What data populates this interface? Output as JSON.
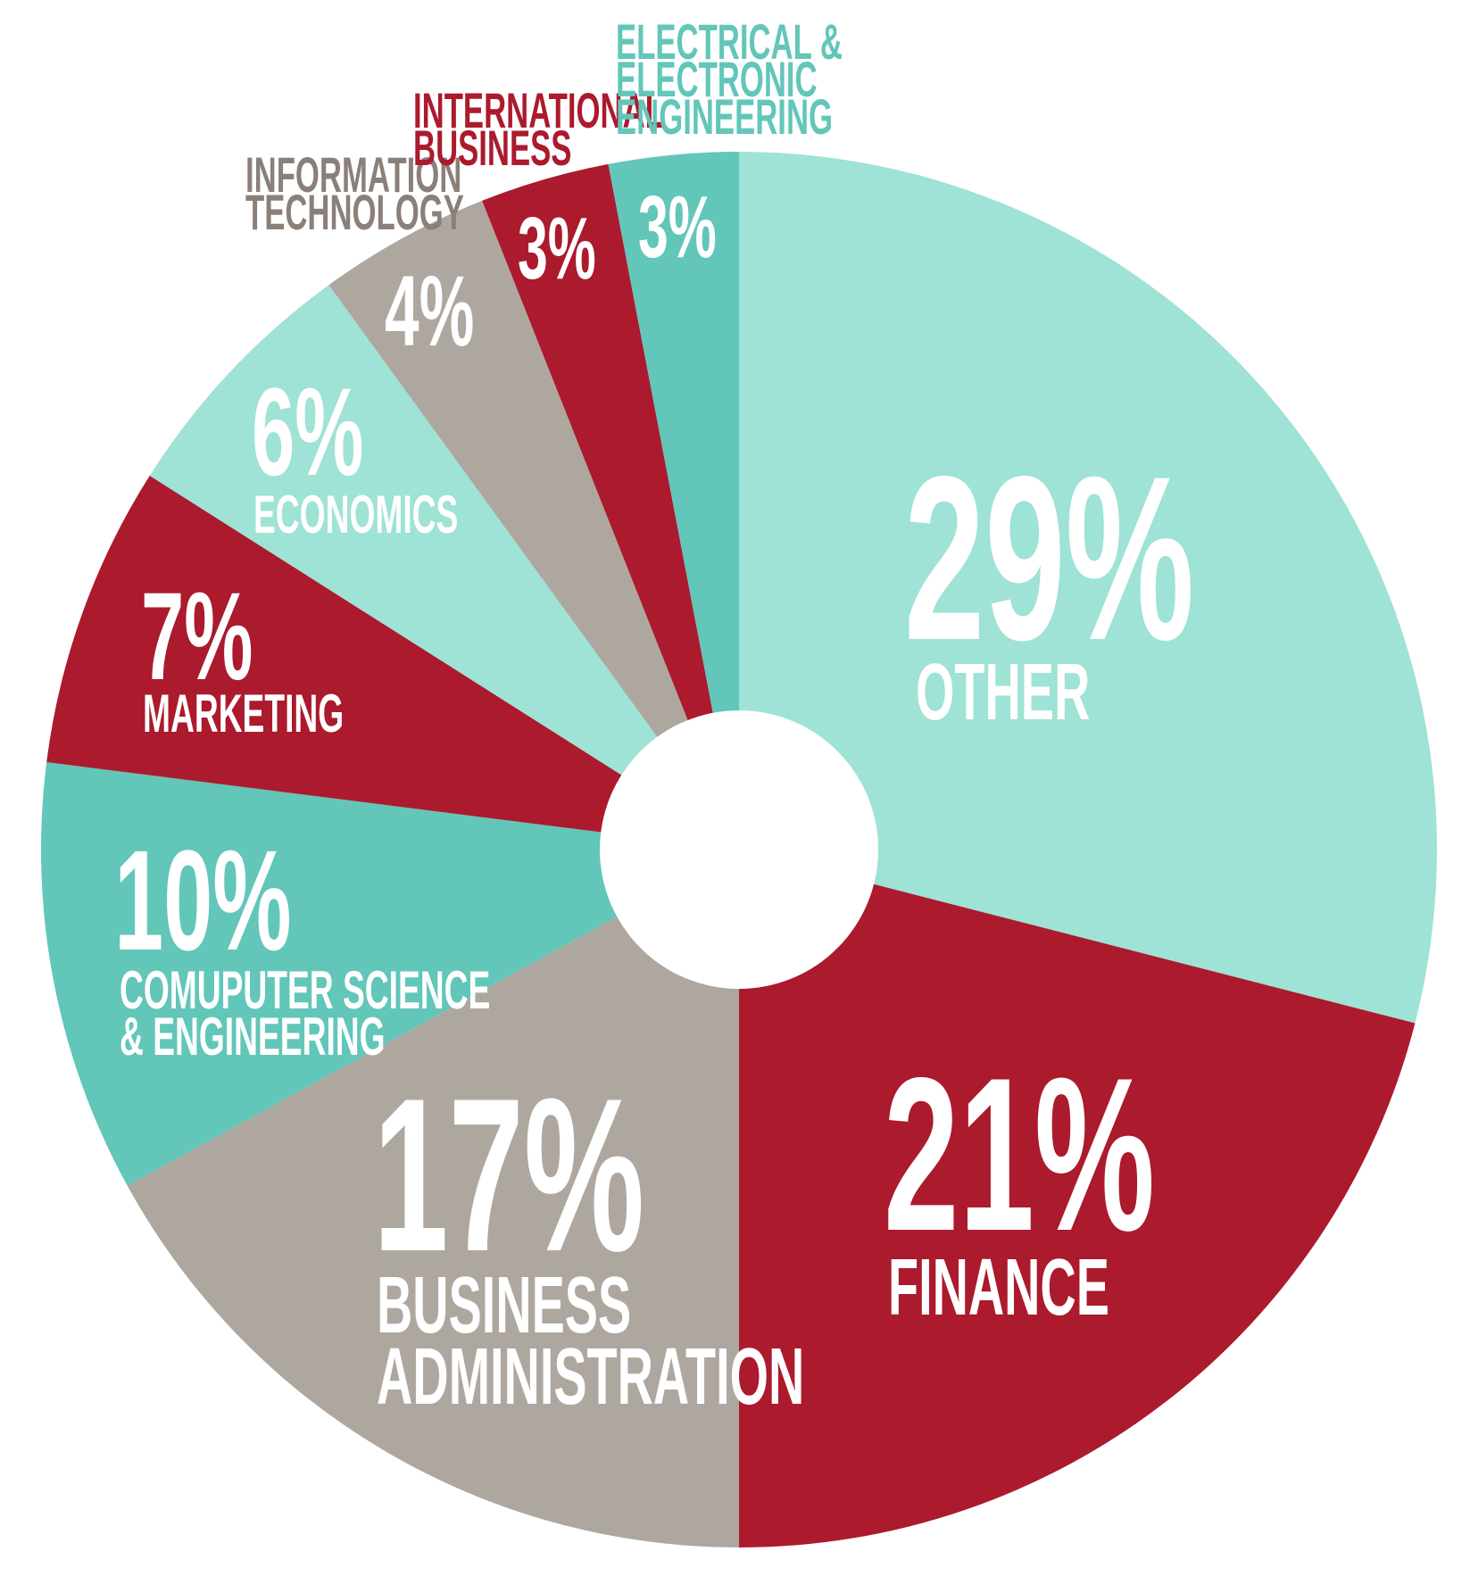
{
  "chart_data": {
    "type": "pie",
    "donut": true,
    "title": "",
    "start": "top, clockwise",
    "slices": [
      {
        "label": "OTHER",
        "value": 29,
        "display": "29%",
        "color": "#9fe2d6"
      },
      {
        "label": "FINANCE",
        "value": 21,
        "display": "21%",
        "color": "#ab1a2d"
      },
      {
        "label": "BUSINESS ADMINISTRATION",
        "label_lines": [
          "BUSINESS",
          "ADMINISTRATION"
        ],
        "value": 17,
        "display": "17%",
        "color": "#aea7a0"
      },
      {
        "label": "COMUPUTER SCIENCE & ENGINEERING",
        "label_lines": [
          "COMUPUTER SCIENCE",
          "& ENGINEERING"
        ],
        "value": 10,
        "display": "10%",
        "color": "#62c6b9"
      },
      {
        "label": "MARKETING",
        "value": 7,
        "display": "7%",
        "color": "#ab1a2d"
      },
      {
        "label": "ECONOMICS",
        "value": 6,
        "display": "6%",
        "color": "#9fe2d6"
      },
      {
        "label": "INFORMATION TECHNOLOGY",
        "label_lines": [
          "INFORMATION",
          "TECHNOLOGY"
        ],
        "value": 4,
        "display": "4%",
        "color": "#aea7a0",
        "label_color": "#8b8079"
      },
      {
        "label": "INTERNATIONAL BUSINESS",
        "label_lines": [
          "INTERNATIONAL",
          "BUSINESS"
        ],
        "value": 3,
        "display": "3%",
        "color": "#ab1a2d",
        "label_color": "#ab1a2d"
      },
      {
        "label": "ELECTRICAL & ELECTRONIC ENGINEERING",
        "label_lines": [
          "ELECTRICAL &",
          "ELECTRONIC",
          "ENGINEERING"
        ],
        "value": 3,
        "display": "3%",
        "color": "#62c6b9",
        "label_color": "#62c6b9"
      }
    ]
  }
}
